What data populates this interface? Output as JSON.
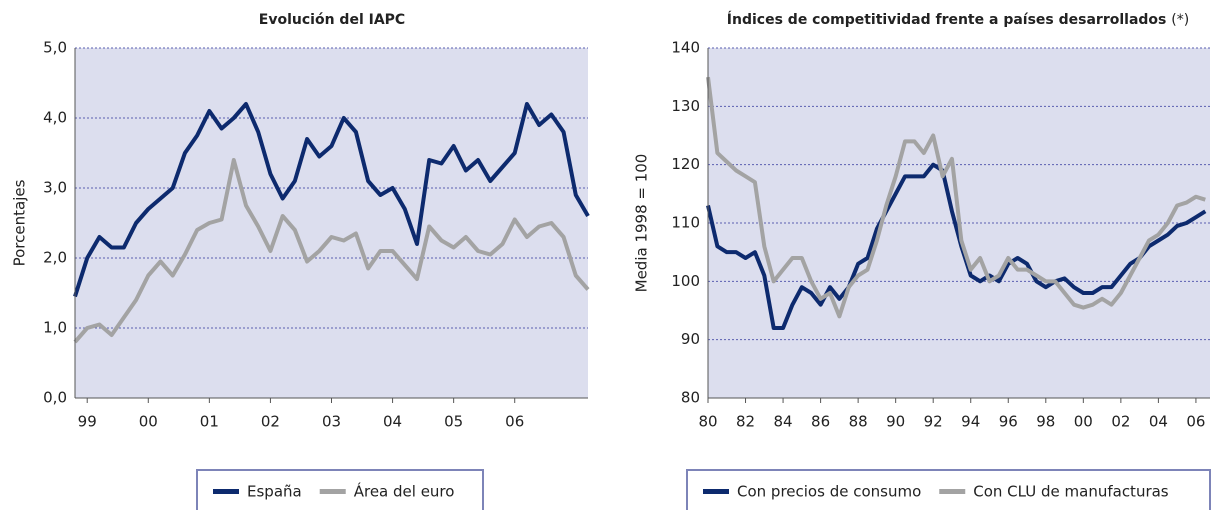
{
  "chart_data": [
    {
      "type": "line",
      "title": "Evolución del IAPC",
      "y_label": "Porcentajes",
      "x": [
        1998.8,
        1999,
        1999.2,
        1999.4,
        1999.6,
        1999.8,
        2000,
        2000.2,
        2000.4,
        2000.6,
        2000.8,
        2001,
        2001.2,
        2001.4,
        2001.6,
        2001.8,
        2002,
        2002.2,
        2002.4,
        2002.6,
        2002.8,
        2003,
        2003.2,
        2003.4,
        2003.6,
        2003.8,
        2004,
        2004.2,
        2004.4,
        2004.6,
        2004.8,
        2005,
        2005.2,
        2005.4,
        2005.6,
        2005.8,
        2006,
        2006.2,
        2006.4,
        2006.6,
        2006.8,
        2007,
        2007.2
      ],
      "series": [
        {
          "name": "España",
          "color": "#0d2a6e",
          "values": [
            1.45,
            2.0,
            2.3,
            2.15,
            2.15,
            2.5,
            2.7,
            2.85,
            3.0,
            3.5,
            3.75,
            4.1,
            3.85,
            4.0,
            4.2,
            3.8,
            3.2,
            2.85,
            3.1,
            3.7,
            3.45,
            3.6,
            4.0,
            3.8,
            3.1,
            2.9,
            3.0,
            2.7,
            2.2,
            3.4,
            3.35,
            3.6,
            3.25,
            3.4,
            3.1,
            3.3,
            3.5,
            4.2,
            3.9,
            4.05,
            3.8,
            2.9,
            2.6
          ]
        },
        {
          "name": "Área del euro",
          "color": "#a3a3a3",
          "values": [
            0.8,
            1.0,
            1.05,
            0.9,
            1.15,
            1.4,
            1.75,
            1.95,
            1.75,
            2.05,
            2.4,
            2.5,
            2.55,
            3.4,
            2.75,
            2.45,
            2.1,
            2.6,
            2.4,
            1.95,
            2.1,
            2.3,
            2.25,
            2.35,
            1.85,
            2.1,
            2.1,
            1.9,
            1.7,
            2.45,
            2.25,
            2.15,
            2.3,
            2.1,
            2.05,
            2.2,
            2.55,
            2.3,
            2.45,
            2.5,
            2.3,
            1.75,
            1.55
          ]
        }
      ],
      "xlim": [
        1998.8,
        2007.2
      ],
      "xticks": [
        {
          "value": 1999,
          "label": "99"
        },
        {
          "value": 2000,
          "label": "00"
        },
        {
          "value": 2001,
          "label": "01"
        },
        {
          "value": 2002,
          "label": "02"
        },
        {
          "value": 2003,
          "label": "03"
        },
        {
          "value": 2004,
          "label": "04"
        },
        {
          "value": 2005,
          "label": "05"
        },
        {
          "value": 2006,
          "label": "06"
        }
      ],
      "ylim": [
        0,
        5
      ],
      "yticks": [
        {
          "value": 0,
          "label": "0,0"
        },
        {
          "value": 1,
          "label": "1,0"
        },
        {
          "value": 2,
          "label": "2,0"
        },
        {
          "value": 3,
          "label": "3,0"
        },
        {
          "value": 4,
          "label": "4,0"
        },
        {
          "value": 5,
          "label": "5,0"
        }
      ],
      "grid": true
    },
    {
      "type": "line",
      "title": "Índices de competitividad frente a países desarrollados",
      "title_note": "(*)",
      "y_label": "Media 1998 = 100",
      "x": [
        1980,
        1980.5,
        1981,
        1981.5,
        1982,
        1982.5,
        1983,
        1983.5,
        1984,
        1984.5,
        1985,
        1985.5,
        1986,
        1986.5,
        1987,
        1987.5,
        1988,
        1988.5,
        1989,
        1989.5,
        1990,
        1990.5,
        1991,
        1991.5,
        1992,
        1992.5,
        1993,
        1993.5,
        1994,
        1994.5,
        1995,
        1995.5,
        1996,
        1996.5,
        1997,
        1997.5,
        1998,
        1998.5,
        1999,
        1999.5,
        2000,
        2000.5,
        2001,
        2001.5,
        2002,
        2002.5,
        2003,
        2003.5,
        2004,
        2004.5,
        2005,
        2005.5,
        2006,
        2006.5
      ],
      "series": [
        {
          "name": "Con precios de consumo",
          "color": "#0d2a6e",
          "values": [
            113,
            106,
            105,
            105,
            104,
            105,
            101,
            92,
            92,
            96,
            99,
            98,
            96,
            99,
            97,
            99,
            103,
            104,
            109,
            112,
            115,
            118,
            118,
            118,
            120,
            119,
            112,
            106,
            101,
            100,
            101,
            100,
            103,
            104,
            103,
            100,
            99,
            100,
            100.5,
            99,
            98,
            98,
            99,
            99,
            101,
            103,
            104,
            106,
            107,
            108,
            109.5,
            110,
            111,
            112
          ]
        },
        {
          "name": "Con CLU de manufacturas",
          "color": "#a3a3a3",
          "values": [
            135,
            122,
            120.5,
            119,
            118,
            117,
            106,
            100,
            102,
            104,
            104,
            100,
            97,
            98,
            94,
            99,
            101,
            102,
            107,
            113,
            118,
            124,
            124,
            122,
            125,
            118,
            121,
            107,
            102,
            104,
            100,
            101,
            104,
            102,
            102,
            101,
            100,
            100,
            98,
            96,
            95.5,
            96,
            97,
            96,
            98,
            101,
            104,
            107,
            108,
            110,
            113,
            113.5,
            114.5,
            114
          ]
        }
      ],
      "xlim": [
        1980,
        2006.75
      ],
      "xticks": [
        {
          "value": 1980,
          "label": "80"
        },
        {
          "value": 1982,
          "label": "82"
        },
        {
          "value": 1984,
          "label": "84"
        },
        {
          "value": 1986,
          "label": "86"
        },
        {
          "value": 1988,
          "label": "88"
        },
        {
          "value": 1990,
          "label": "90"
        },
        {
          "value": 1992,
          "label": "92"
        },
        {
          "value": 1994,
          "label": "94"
        },
        {
          "value": 1996,
          "label": "96"
        },
        {
          "value": 1998,
          "label": "98"
        },
        {
          "value": 2000,
          "label": "00"
        },
        {
          "value": 2002,
          "label": "02"
        },
        {
          "value": 2004,
          "label": "04"
        },
        {
          "value": 2006,
          "label": "06"
        }
      ],
      "ylim": [
        80,
        140
      ],
      "yticks": [
        80,
        90,
        100,
        110,
        120,
        130,
        140
      ],
      "grid": true
    }
  ]
}
